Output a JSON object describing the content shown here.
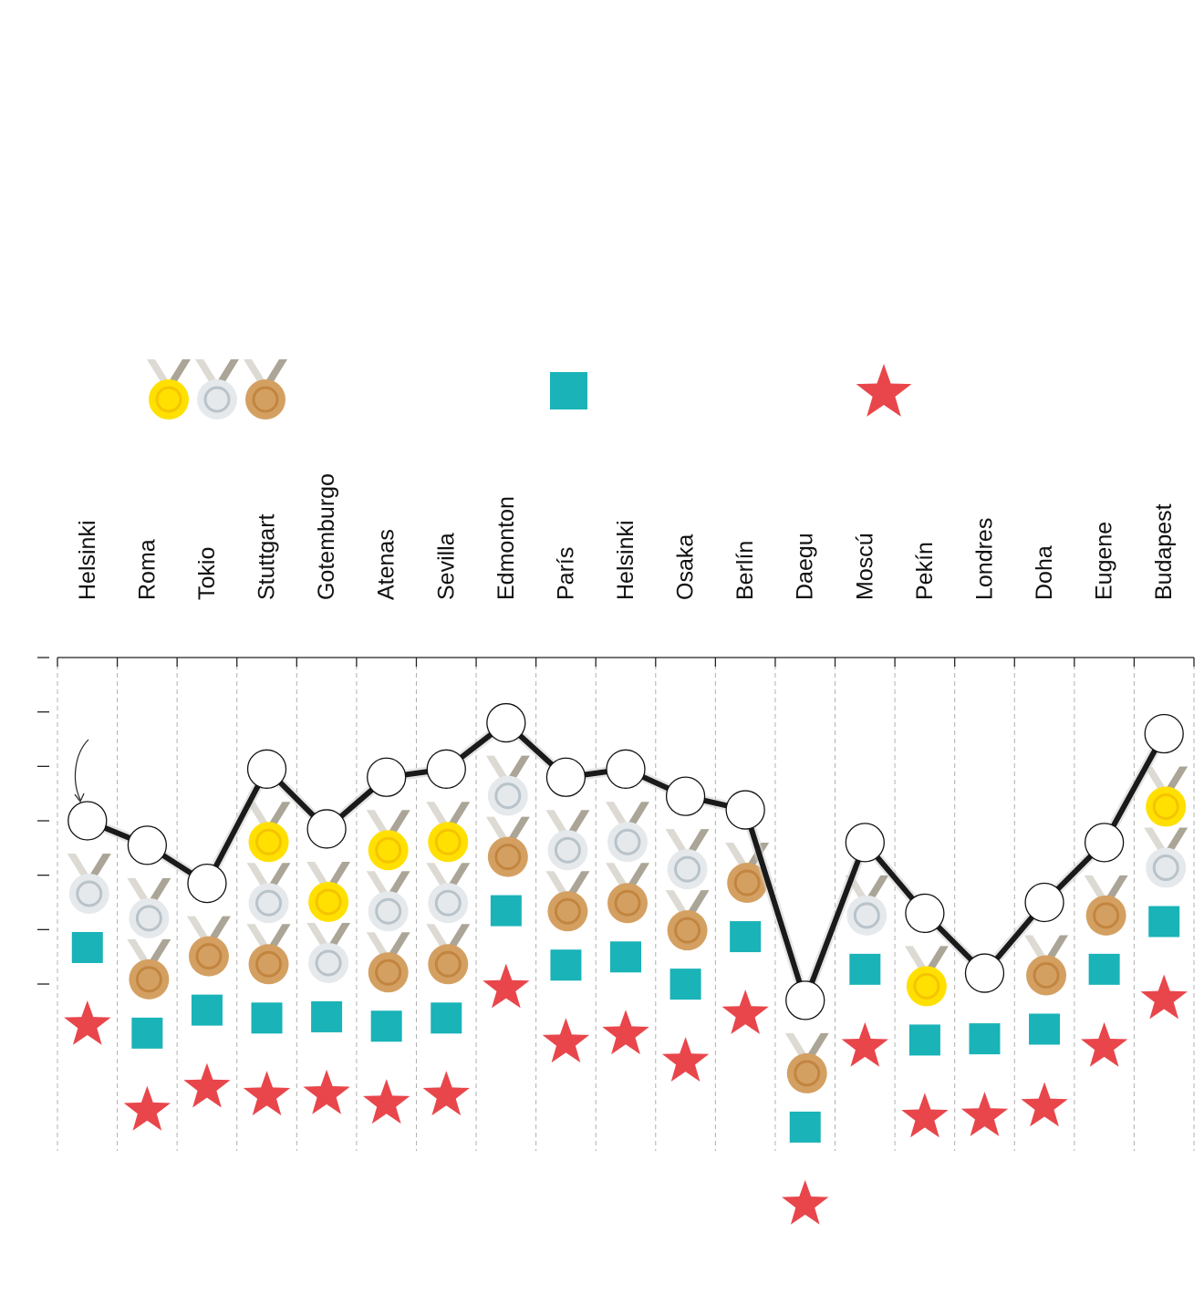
{
  "colors": {
    "line": "#1a1a1a",
    "marker_fill": "#ffffff",
    "gold": "#ffe000",
    "gold_ring": "#f5c400",
    "silver": "#e6e9ec",
    "silver_ring": "#b8c3ca",
    "bronze": "#d4a062",
    "bronze_ring": "#c28540",
    "ribbon": "#aaa596",
    "ribbon_light": "#dcdad3",
    "square": "#19b3b8",
    "star": "#e8464b",
    "gridline": "#b0b0b0"
  },
  "legend": {
    "medals_icon": "medal-icons-gold-silver-bronze",
    "square_icon": "teal-square",
    "star_icon": "red-star"
  },
  "chart_data": {
    "type": "line",
    "title": "",
    "xlabel": "",
    "ylabel": "",
    "grid": true,
    "x": [
      "Helsinki",
      "Roma",
      "Tokio",
      "Stuttgart",
      "Gotemburgo",
      "Atenas",
      "Sevilla",
      "Edmonton",
      "París",
      "Helsinki",
      "Osaka",
      "Berlín",
      "Daegu",
      "Moscú",
      "Pekín",
      "Londres",
      "Doha",
      "Eugene",
      "Budapest"
    ],
    "ylim": [
      0,
      6
    ],
    "series": [
      {
        "values": [
          3.0,
          2.55,
          1.85,
          3.95,
          2.85,
          3.8,
          3.95,
          4.8,
          3.8,
          3.95,
          3.45,
          3.2,
          -0.3,
          2.6,
          1.3,
          0.2,
          1.5,
          2.6,
          4.6
        ]
      }
    ],
    "icon_stacks": [
      [
        "silver",
        "square",
        "star"
      ],
      [
        "silver",
        "bronze",
        "square",
        "star"
      ],
      [
        "bronze",
        "square",
        "star"
      ],
      [
        "gold",
        "silver",
        "bronze",
        "square",
        "star"
      ],
      [
        "gold",
        "silver",
        "square",
        "star"
      ],
      [
        "gold",
        "silver",
        "bronze",
        "square",
        "star"
      ],
      [
        "gold",
        "silver",
        "bronze",
        "square",
        "star"
      ],
      [
        "silver",
        "bronze",
        "square",
        "star"
      ],
      [
        "silver",
        "bronze",
        "square",
        "star"
      ],
      [
        "silver",
        "bronze",
        "square",
        "star"
      ],
      [
        "silver",
        "bronze",
        "square",
        "star"
      ],
      [
        "bronze",
        "square",
        "star"
      ],
      [
        "bronze",
        "square",
        "star"
      ],
      [
        "silver",
        "square",
        "star"
      ],
      [
        "gold",
        "square",
        "star"
      ],
      [
        "square",
        "star"
      ],
      [
        "bronze",
        "square",
        "star"
      ],
      [
        "bronze",
        "square",
        "star"
      ],
      [
        "gold",
        "silver",
        "square",
        "star"
      ]
    ]
  }
}
